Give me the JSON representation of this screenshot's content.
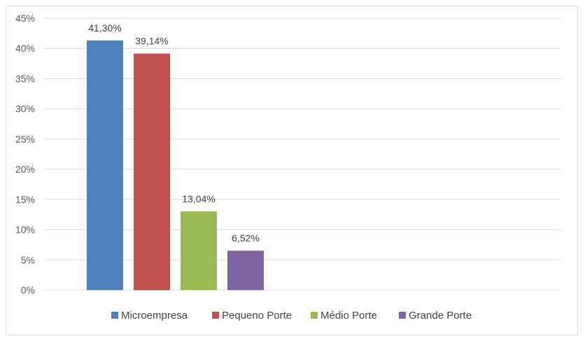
{
  "chart_data": {
    "type": "bar",
    "title": "",
    "xlabel": "",
    "ylabel": "",
    "categories": [
      "Microempresa",
      "Pequeno Porte",
      "Médio Porte",
      "Grande Porte"
    ],
    "values": [
      41.3,
      39.14,
      13.04,
      6.52
    ],
    "data_labels": [
      "41,30%",
      "39,14%",
      "13,04%",
      "6,52%"
    ],
    "colors": [
      "#4f81bd",
      "#c0504d",
      "#9bbb59",
      "#8064a2"
    ],
    "ylim": [
      0,
      45
    ],
    "yticks": [
      0,
      5,
      10,
      15,
      20,
      25,
      30,
      35,
      40,
      45
    ],
    "ytick_labels": [
      "0%",
      "5%",
      "10%",
      "15%",
      "20%",
      "25%",
      "30%",
      "35%",
      "40%",
      "45%"
    ],
    "grid": true,
    "legend": {
      "placement": "bottom",
      "entries": [
        "Microempresa",
        "Pequeno Porte",
        "Médio Porte",
        "Grande Porte"
      ]
    }
  }
}
